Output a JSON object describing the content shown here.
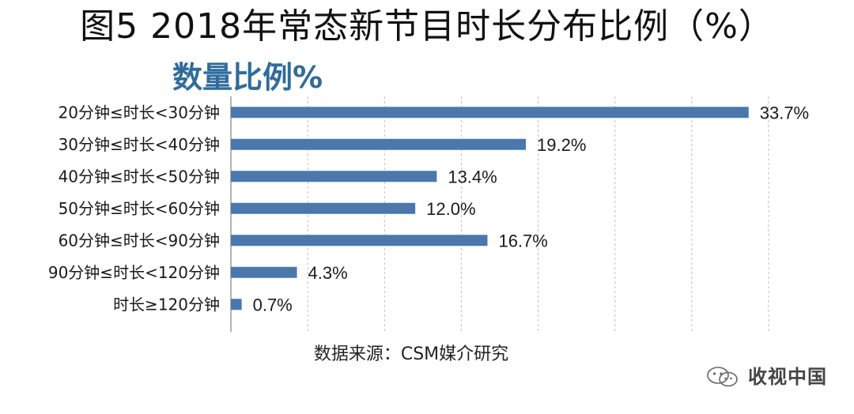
{
  "figure": {
    "title": "图5  2018年常态新节目时长分布比例（%）",
    "source": "数据来源：CSM媒介研究",
    "watermark": "收视中国"
  },
  "colors": {
    "bar": "#4a78ad",
    "subtitle": "#2f6c9b",
    "grid": "#bfbfbf",
    "axis": "#9a9a9a"
  },
  "chart_data": {
    "type": "bar",
    "orientation": "horizontal",
    "title": "数量比例%",
    "categories": [
      "20分钟≤时长<30分钟",
      "30分钟≤时长<40分钟",
      "40分钟≤时长<50分钟",
      "50分钟≤时长<60分钟",
      "60分钟≤时长<90分钟",
      "90分钟≤时长<120分钟",
      "时长≥120分钟"
    ],
    "values": [
      33.7,
      19.2,
      13.4,
      12.0,
      16.7,
      4.3,
      0.7
    ],
    "data_labels": [
      "33.7%",
      "19.2%",
      "13.4%",
      "12.0%",
      "16.7%",
      "4.3%",
      "0.7%"
    ],
    "xlim": [
      0,
      35
    ],
    "grid": "vertical dashed",
    "legend": "none"
  }
}
